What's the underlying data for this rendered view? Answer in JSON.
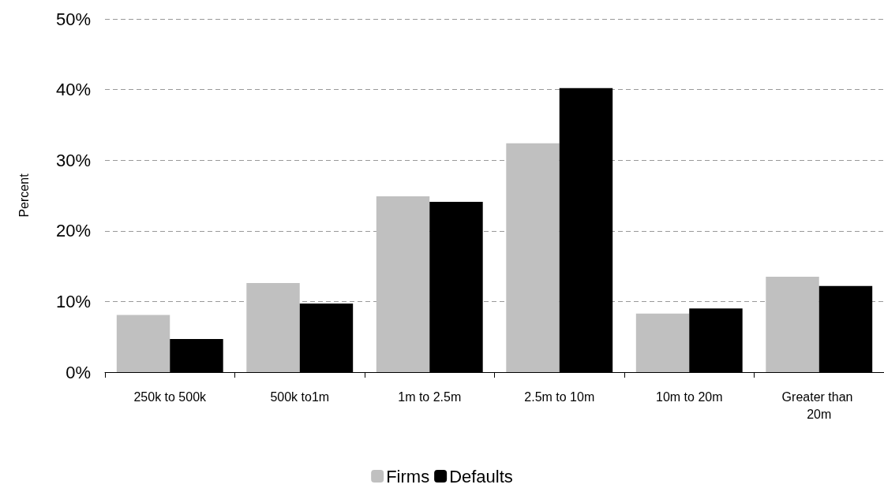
{
  "chart_data": {
    "type": "bar",
    "ylabel": "Percent",
    "categories": [
      "250k to 500k",
      "500k to1m",
      "1m to 2.5m",
      "2.5m to 10m",
      "10m to 20m",
      "Greater than 20m"
    ],
    "series": [
      {
        "name": "Firms",
        "color": "#c0c0c0",
        "values": [
          8.1,
          12.6,
          24.9,
          32.4,
          8.3,
          13.5
        ]
      },
      {
        "name": "Defaults",
        "color": "#000000",
        "values": [
          4.7,
          9.7,
          24.1,
          40.2,
          9.0,
          12.2
        ]
      }
    ],
    "ylim": [
      0,
      50
    ],
    "yticks": [
      {
        "value": 0,
        "label": "0%"
      },
      {
        "value": 10,
        "label": "10%"
      },
      {
        "value": 20,
        "label": "20%"
      },
      {
        "value": 30,
        "label": "30%"
      },
      {
        "value": 40,
        "label": "40%"
      },
      {
        "value": 50,
        "label": "50%"
      }
    ],
    "grid": "y",
    "legend": "bottom"
  }
}
